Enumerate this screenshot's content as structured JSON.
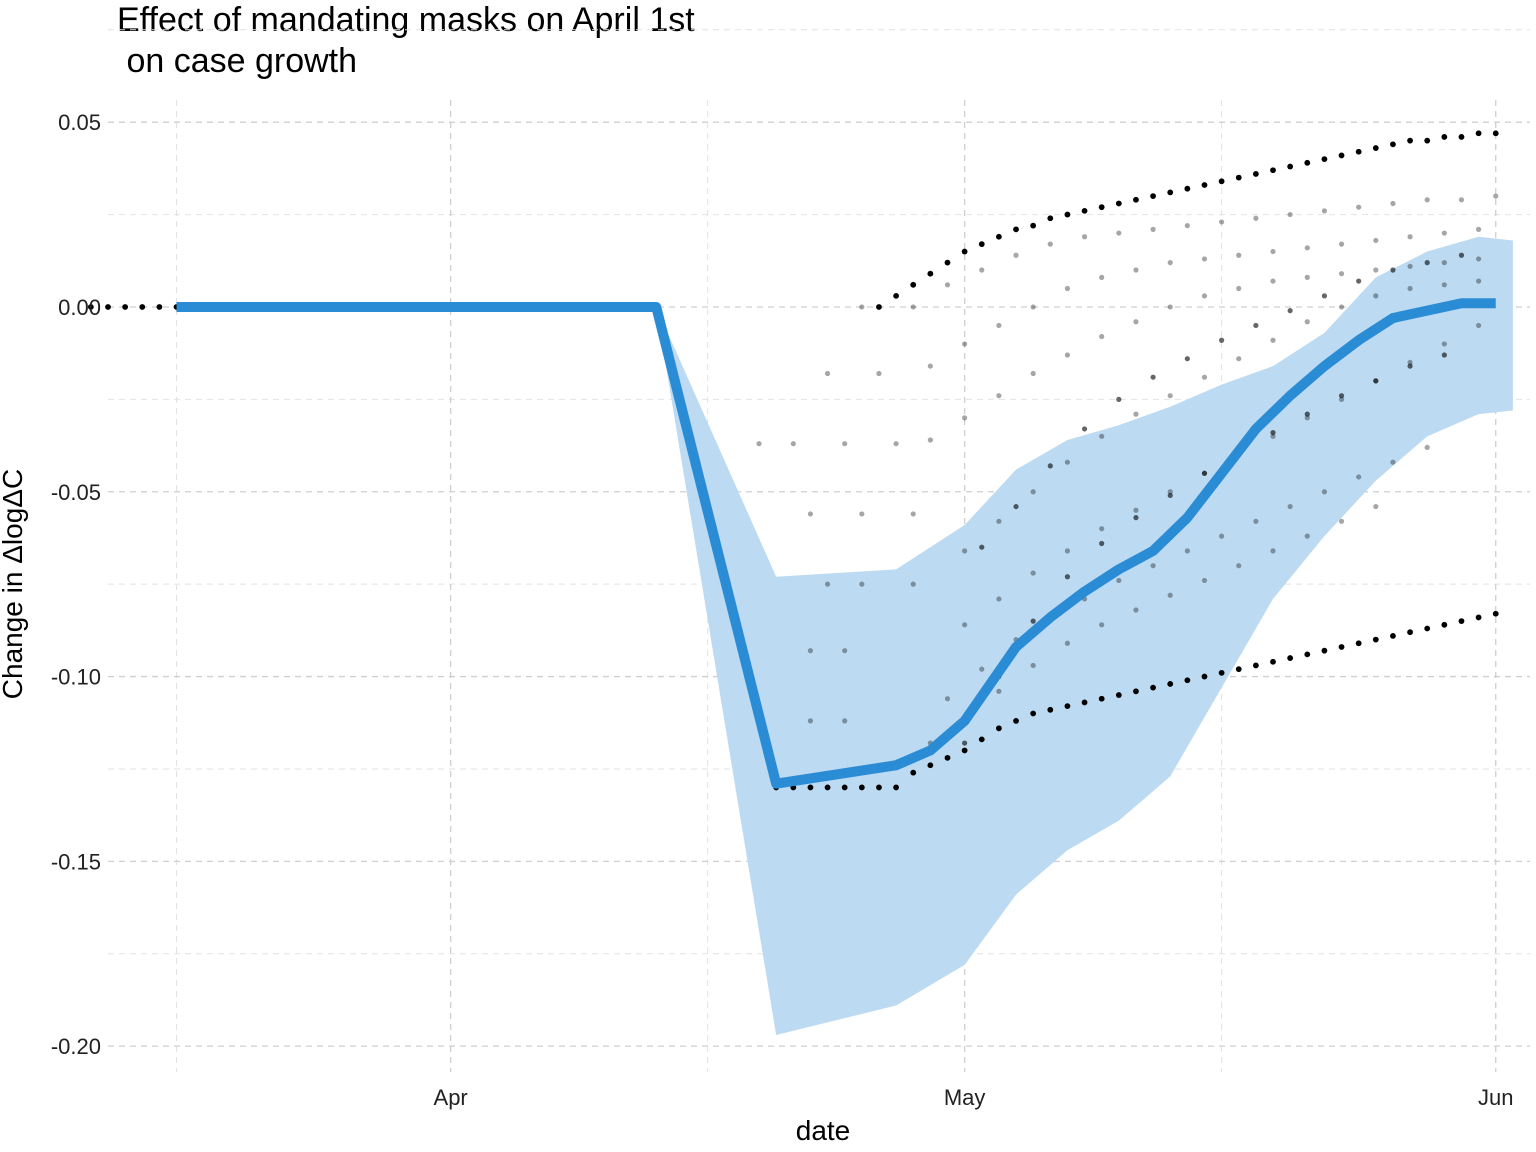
{
  "chart_data": {
    "type": "line",
    "title_lines": [
      "Effect of mandating masks on April 1st",
      " on case growth"
    ],
    "xlabel": "date",
    "ylabel": "Change in ΔlogΔC",
    "x_ticks": [
      {
        "label": "Apr",
        "date": "2020-04-01"
      },
      {
        "label": "May",
        "date": "2020-05-01"
      },
      {
        "label": "Jun",
        "date": "2020-06-01"
      }
    ],
    "y_ticks": [
      {
        "label": "0.05",
        "value": 0.05
      },
      {
        "label": "0.00",
        "value": 0.0
      },
      {
        "label": "-0.05",
        "value": -0.05
      },
      {
        "label": "-0.10",
        "value": -0.1
      },
      {
        "label": "-0.15",
        "value": -0.15
      },
      {
        "label": "-0.20",
        "value": -0.2
      }
    ],
    "xlim": [
      "2020-03-12",
      "2020-06-03"
    ],
    "ylim": [
      -0.207,
      0.056
    ],
    "grid": true,
    "colors": {
      "line": "#2b8cd6",
      "band": "#bcdaf1",
      "points": "#000000"
    },
    "mean_line": {
      "x": [
        "2020-03-16",
        "2020-04-13",
        "2020-04-20",
        "2020-04-27",
        "2020-04-29",
        "2020-05-01",
        "2020-05-04",
        "2020-05-06",
        "2020-05-08",
        "2020-05-10",
        "2020-05-12",
        "2020-05-14",
        "2020-05-16",
        "2020-05-18",
        "2020-05-20",
        "2020-05-22",
        "2020-05-24",
        "2020-05-26",
        "2020-05-28",
        "2020-05-30",
        "2020-06-01"
      ],
      "y": [
        0.0,
        0.0,
        -0.129,
        -0.124,
        -0.12,
        -0.112,
        -0.092,
        -0.084,
        -0.077,
        -0.071,
        -0.066,
        -0.057,
        -0.045,
        -0.033,
        -0.024,
        -0.016,
        -0.009,
        -0.003,
        -0.001,
        0.001,
        0.001
      ]
    },
    "ribbon": {
      "x": [
        "2020-04-13",
        "2020-04-20",
        "2020-04-27",
        "2020-05-01",
        "2020-05-04",
        "2020-05-07",
        "2020-05-10",
        "2020-05-13",
        "2020-05-16",
        "2020-05-19",
        "2020-05-22",
        "2020-05-25",
        "2020-05-28",
        "2020-05-31",
        "2020-06-02"
      ],
      "lower": [
        0.0,
        -0.197,
        -0.189,
        -0.178,
        -0.159,
        -0.147,
        -0.139,
        -0.127,
        -0.103,
        -0.079,
        -0.062,
        -0.047,
        -0.035,
        -0.029,
        -0.028
      ],
      "upper": [
        0.0,
        -0.073,
        -0.071,
        -0.059,
        -0.044,
        -0.036,
        -0.032,
        -0.027,
        -0.021,
        -0.016,
        -0.007,
        0.008,
        0.015,
        0.019,
        0.018
      ]
    },
    "series": [
      {
        "role": "upper-envelope",
        "opacity": 1.0,
        "x": [
          "2020-03-11",
          "2020-03-12",
          "2020-03-13",
          "2020-03-14",
          "2020-03-15",
          "2020-03-16",
          "2020-04-26",
          "2020-04-27",
          "2020-04-28",
          "2020-04-29",
          "2020-04-30",
          "2020-05-01",
          "2020-05-02",
          "2020-05-03",
          "2020-05-04",
          "2020-05-05",
          "2020-05-06",
          "2020-05-07",
          "2020-05-08",
          "2020-05-09",
          "2020-05-10",
          "2020-05-11",
          "2020-05-12",
          "2020-05-13",
          "2020-05-14",
          "2020-05-15",
          "2020-05-16",
          "2020-05-17",
          "2020-05-18",
          "2020-05-19",
          "2020-05-20",
          "2020-05-21",
          "2020-05-22",
          "2020-05-23",
          "2020-05-24",
          "2020-05-25",
          "2020-05-26",
          "2020-05-27",
          "2020-05-28",
          "2020-05-29",
          "2020-05-30",
          "2020-05-31",
          "2020-06-01"
        ],
        "y": [
          0.0,
          0.0,
          0.0,
          0.0,
          0.0,
          0.0,
          0.0,
          0.003,
          0.006,
          0.009,
          0.012,
          0.015,
          0.017,
          0.019,
          0.021,
          0.022,
          0.024,
          0.025,
          0.026,
          0.027,
          0.028,
          0.029,
          0.03,
          0.031,
          0.032,
          0.033,
          0.034,
          0.035,
          0.036,
          0.037,
          0.038,
          0.039,
          0.04,
          0.041,
          0.042,
          0.043,
          0.044,
          0.045,
          0.045,
          0.046,
          0.046,
          0.047,
          0.047
        ]
      },
      {
        "role": "lower-envelope",
        "opacity": 1.0,
        "x": [
          "2020-04-20",
          "2020-04-21",
          "2020-04-22",
          "2020-04-23",
          "2020-04-24",
          "2020-04-25",
          "2020-04-26",
          "2020-04-27",
          "2020-04-28",
          "2020-04-29",
          "2020-04-30",
          "2020-05-01",
          "2020-05-02",
          "2020-05-03",
          "2020-05-04",
          "2020-05-05",
          "2020-05-06",
          "2020-05-07",
          "2020-05-08",
          "2020-05-09",
          "2020-05-10",
          "2020-05-11",
          "2020-05-12",
          "2020-05-13",
          "2020-05-14",
          "2020-05-15",
          "2020-05-16",
          "2020-05-17",
          "2020-05-18",
          "2020-05-19",
          "2020-05-20",
          "2020-05-21",
          "2020-05-22",
          "2020-05-23",
          "2020-05-24",
          "2020-05-25",
          "2020-05-26",
          "2020-05-27",
          "2020-05-28",
          "2020-05-29",
          "2020-05-30",
          "2020-05-31",
          "2020-06-01"
        ],
        "y": [
          -0.13,
          -0.13,
          -0.13,
          -0.13,
          -0.13,
          -0.13,
          -0.13,
          -0.13,
          -0.126,
          -0.124,
          -0.122,
          -0.12,
          -0.117,
          -0.114,
          -0.112,
          -0.11,
          -0.109,
          -0.108,
          -0.107,
          -0.106,
          -0.105,
          -0.104,
          -0.103,
          -0.102,
          -0.101,
          -0.1,
          -0.099,
          -0.098,
          -0.097,
          -0.096,
          -0.095,
          -0.094,
          -0.093,
          -0.092,
          -0.091,
          -0.09,
          -0.089,
          -0.088,
          -0.087,
          -0.086,
          -0.085,
          -0.084,
          -0.083
        ]
      },
      {
        "role": "samples-mid",
        "opacity": 0.35,
        "x": [
          "2020-04-25",
          "2020-04-28",
          "2020-04-30",
          "2020-05-02",
          "2020-05-04",
          "2020-05-06",
          "2020-05-08",
          "2020-05-10",
          "2020-05-12",
          "2020-05-14",
          "2020-05-16",
          "2020-05-18",
          "2020-05-20",
          "2020-05-22",
          "2020-05-24",
          "2020-05-26",
          "2020-05-28",
          "2020-05-30",
          "2020-06-01"
        ],
        "y": [
          0.0,
          0.0,
          0.006,
          0.01,
          0.014,
          0.017,
          0.019,
          0.02,
          0.021,
          0.022,
          0.023,
          0.024,
          0.025,
          0.026,
          0.027,
          0.028,
          0.029,
          0.029,
          0.03
        ]
      },
      {
        "role": "samples-mid",
        "opacity": 0.35,
        "x": [
          "2020-04-23",
          "2020-04-26",
          "2020-04-29",
          "2020-05-01",
          "2020-05-03",
          "2020-05-05",
          "2020-05-07",
          "2020-05-09",
          "2020-05-11",
          "2020-05-13",
          "2020-05-15",
          "2020-05-17",
          "2020-05-19",
          "2020-05-21",
          "2020-05-23",
          "2020-05-25",
          "2020-05-27",
          "2020-05-29",
          "2020-05-31"
        ],
        "y": [
          -0.018,
          -0.018,
          -0.016,
          -0.01,
          -0.005,
          0.0,
          0.005,
          0.008,
          0.01,
          0.012,
          0.013,
          0.014,
          0.015,
          0.016,
          0.017,
          0.018,
          0.019,
          0.02,
          0.021
        ]
      },
      {
        "role": "samples-mid",
        "opacity": 0.35,
        "x": [
          "2020-04-19",
          "2020-04-21",
          "2020-04-24",
          "2020-04-27",
          "2020-04-29",
          "2020-05-01",
          "2020-05-03",
          "2020-05-05",
          "2020-05-07",
          "2020-05-09",
          "2020-05-11",
          "2020-05-13",
          "2020-05-15",
          "2020-05-17",
          "2020-05-19",
          "2020-05-21",
          "2020-05-23",
          "2020-05-25",
          "2020-05-27",
          "2020-05-29",
          "2020-05-31"
        ],
        "y": [
          -0.037,
          -0.037,
          -0.037,
          -0.037,
          -0.036,
          -0.03,
          -0.024,
          -0.018,
          -0.013,
          -0.008,
          -0.004,
          0.0,
          0.003,
          0.005,
          0.007,
          0.008,
          0.009,
          0.01,
          0.011,
          0.012,
          0.013
        ]
      },
      {
        "role": "samples-mid",
        "opacity": 0.35,
        "x": [
          "2020-04-22",
          "2020-04-25",
          "2020-04-28",
          "2020-05-01",
          "2020-05-03",
          "2020-05-05",
          "2020-05-07",
          "2020-05-09",
          "2020-05-11",
          "2020-05-13",
          "2020-05-15",
          "2020-05-17",
          "2020-05-19",
          "2020-05-21",
          "2020-05-23",
          "2020-05-25",
          "2020-05-27",
          "2020-05-29",
          "2020-05-31"
        ],
        "y": [
          -0.056,
          -0.056,
          -0.056,
          -0.066,
          -0.058,
          -0.05,
          -0.042,
          -0.035,
          -0.029,
          -0.024,
          -0.019,
          -0.014,
          -0.009,
          -0.004,
          0.0,
          0.003,
          0.005,
          0.006,
          0.007
        ]
      },
      {
        "role": "samples-mid",
        "opacity": 0.35,
        "x": [
          "2020-04-23",
          "2020-04-25",
          "2020-04-28",
          "2020-05-01",
          "2020-05-03",
          "2020-05-05",
          "2020-05-07",
          "2020-05-09",
          "2020-05-11",
          "2020-05-13",
          "2020-05-15",
          "2020-05-17",
          "2020-05-19",
          "2020-05-21",
          "2020-05-23",
          "2020-05-25",
          "2020-05-27",
          "2020-05-29",
          "2020-05-31"
        ],
        "y": [
          -0.075,
          -0.075,
          -0.075,
          -0.086,
          -0.079,
          -0.072,
          -0.066,
          -0.06,
          -0.055,
          -0.05,
          -0.045,
          -0.04,
          -0.035,
          -0.03,
          -0.025,
          -0.02,
          -0.015,
          -0.01,
          -0.005
        ]
      },
      {
        "role": "samples-mid",
        "opacity": 0.35,
        "x": [
          "2020-04-22",
          "2020-04-24",
          "2020-04-30",
          "2020-05-02",
          "2020-05-04",
          "2020-05-06",
          "2020-05-08",
          "2020-05-10",
          "2020-05-12",
          "2020-05-14",
          "2020-05-16",
          "2020-05-18",
          "2020-05-20",
          "2020-05-22",
          "2020-05-24",
          "2020-05-26",
          "2020-05-28"
        ],
        "y": [
          -0.093,
          -0.093,
          -0.106,
          -0.098,
          -0.09,
          -0.084,
          -0.079,
          -0.074,
          -0.07,
          -0.066,
          -0.062,
          -0.058,
          -0.054,
          -0.05,
          -0.046,
          -0.042,
          -0.038
        ]
      },
      {
        "role": "samples-mid",
        "opacity": 0.35,
        "x": [
          "2020-04-22",
          "2020-04-24",
          "2020-04-29",
          "2020-05-01",
          "2020-05-03",
          "2020-05-05",
          "2020-05-07",
          "2020-05-09",
          "2020-05-11",
          "2020-05-13",
          "2020-05-15",
          "2020-05-17",
          "2020-05-19",
          "2020-05-21",
          "2020-05-23",
          "2020-05-25"
        ],
        "y": [
          -0.112,
          -0.112,
          -0.118,
          -0.112,
          -0.104,
          -0.097,
          -0.091,
          -0.086,
          -0.082,
          -0.078,
          -0.074,
          -0.07,
          -0.066,
          -0.062,
          -0.058,
          -0.054
        ]
      },
      {
        "role": "samples-dark",
        "opacity": 0.6,
        "x": [
          "2020-05-02",
          "2020-05-04",
          "2020-05-06",
          "2020-05-08",
          "2020-05-10",
          "2020-05-12",
          "2020-05-14",
          "2020-05-16",
          "2020-05-18",
          "2020-05-20",
          "2020-05-22",
          "2020-05-24",
          "2020-05-26",
          "2020-05-28",
          "2020-05-30"
        ],
        "y": [
          -0.065,
          -0.054,
          -0.043,
          -0.033,
          -0.025,
          -0.019,
          -0.014,
          -0.009,
          -0.005,
          -0.001,
          0.003,
          0.007,
          0.01,
          0.012,
          0.014
        ]
      },
      {
        "role": "samples-dark",
        "opacity": 0.6,
        "x": [
          "2020-05-01",
          "2020-05-03",
          "2020-05-05",
          "2020-05-07",
          "2020-05-09",
          "2020-05-11",
          "2020-05-13",
          "2020-05-15",
          "2020-05-17",
          "2020-05-19",
          "2020-05-21",
          "2020-05-23",
          "2020-05-25",
          "2020-05-27",
          "2020-05-29"
        ],
        "y": [
          -0.118,
          -0.1,
          -0.085,
          -0.073,
          -0.064,
          -0.057,
          -0.051,
          -0.045,
          -0.039,
          -0.034,
          -0.029,
          -0.024,
          -0.02,
          -0.016,
          -0.013
        ]
      }
    ]
  }
}
